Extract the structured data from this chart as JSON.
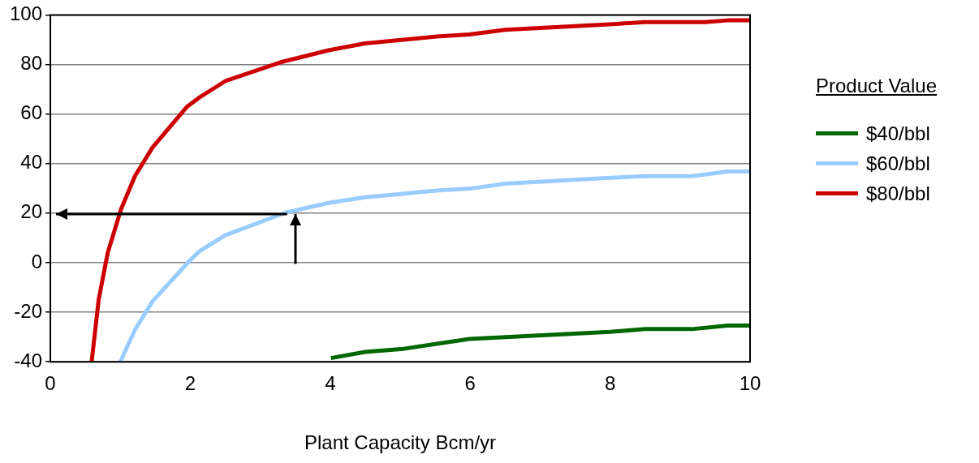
{
  "chart_data": {
    "type": "line",
    "xlabel": "Plant Capacity Bcm/yr",
    "legend_title": "Product Value",
    "legend": "right",
    "grid": "y",
    "marker": "none",
    "line_style": "solid",
    "xlim": [
      0,
      10
    ],
    "xticks": [
      0,
      2,
      4,
      6,
      8,
      10
    ],
    "ylim": [
      -40,
      100
    ],
    "yticks": [
      -40,
      -20,
      0,
      20,
      40,
      60,
      80,
      100
    ],
    "series": [
      {
        "name": "$40/bbl",
        "color": "#006600",
        "x": [
          4.01,
          4.5,
          5.01,
          5.99,
          8,
          8.5,
          9.17,
          9.68,
          10
        ],
        "values": [
          -38.5,
          -36,
          -34.9,
          -30.8,
          -27.9,
          -26.8,
          -26.8,
          -25.4,
          -25.4
        ]
      },
      {
        "name": "$60/bbl",
        "color": "#99ccff",
        "x": [
          1.0,
          1.21,
          1.46,
          1.99,
          2.13,
          2.5,
          3.36,
          3.99,
          4.5,
          5.52,
          6,
          6.5,
          8,
          8.5,
          9.17,
          9.68,
          10
        ],
        "values": [
          -40,
          -27,
          -15.6,
          0.8,
          4.6,
          11.1,
          20.2,
          24.2,
          26.4,
          29.1,
          29.9,
          31.9,
          34.3,
          34.9,
          34.9,
          36.8,
          36.8
        ]
      },
      {
        "name": "$80/bbl",
        "color": "#cc0000",
        "x": [
          0.59,
          0.69,
          0.82,
          1.01,
          1.21,
          1.46,
          1.95,
          2.13,
          2.5,
          3.29,
          3.99,
          4.5,
          5.52,
          5.99,
          6.5,
          7.99,
          8.5,
          9.36,
          9.68,
          10
        ],
        "values": [
          -40,
          -15,
          4,
          21.6,
          35,
          46.5,
          62.9,
          66.7,
          73.3,
          80.9,
          85.8,
          88.5,
          91.3,
          92.1,
          94,
          96.2,
          97.1,
          97.1,
          97.8,
          97.8
        ]
      }
    ]
  }
}
